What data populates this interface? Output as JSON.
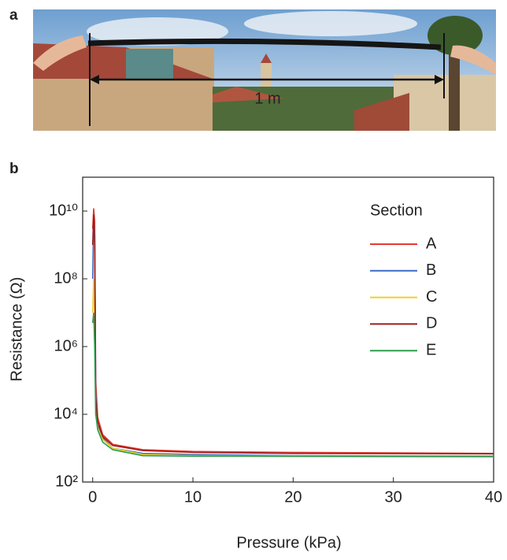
{
  "panels": {
    "a": "a",
    "b": "b"
  },
  "photo": {
    "annotation": "1 m"
  },
  "chart_data": {
    "type": "line",
    "xlabel": "Pressure (kPa)",
    "ylabel": "Resistance (Ω)",
    "x": [
      0,
      0.1,
      0.2,
      0.3,
      0.5,
      1,
      2,
      5,
      10,
      20,
      40
    ],
    "series": [
      {
        "name": "A",
        "color": "#e23a2e",
        "values": [
          3000000000,
          12000000000,
          5000000000,
          100000,
          8000,
          2500,
          1300,
          900,
          800,
          750,
          700
        ]
      },
      {
        "name": "B",
        "color": "#3a6cc8",
        "values": [
          100000000,
          6000000000,
          2000000000,
          50000,
          5000,
          2000,
          1000,
          700,
          650,
          600,
          580
        ]
      },
      {
        "name": "C",
        "color": "#f0cf2a",
        "values": [
          10000000,
          100000000,
          5000000,
          20000,
          4000,
          1800,
          1000,
          650,
          600,
          580,
          560
        ]
      },
      {
        "name": "D",
        "color": "#9a1f1f",
        "values": [
          1000000000,
          8000000000,
          1000000000,
          30000,
          6000,
          2200,
          1200,
          850,
          750,
          700,
          680
        ]
      },
      {
        "name": "E",
        "color": "#2f9d4e",
        "values": [
          5000000,
          10000000,
          1000000,
          10000,
          3500,
          1500,
          900,
          600,
          580,
          570,
          560
        ]
      }
    ],
    "legend_title": "Section",
    "legend": "upper right",
    "xlim": [
      -1,
      40
    ],
    "xticks": [
      0,
      10,
      20,
      30,
      40
    ],
    "ylim": [
      100,
      100000000000
    ],
    "log_y": true,
    "yticks": [
      {
        "value": 100,
        "label": "10²"
      },
      {
        "value": 10000,
        "label": "10⁴"
      },
      {
        "value": 1000000,
        "label": "10⁶"
      },
      {
        "value": 100000000,
        "label": "10⁸"
      },
      {
        "value": 10000000000,
        "label": "10¹⁰"
      }
    ],
    "grid": false
  }
}
